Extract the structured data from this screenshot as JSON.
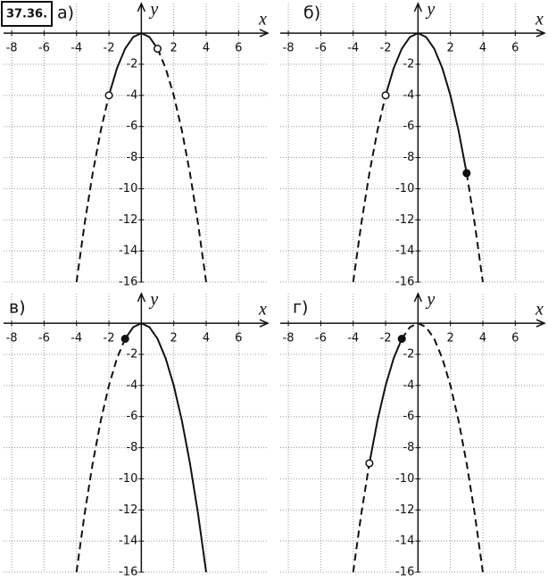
{
  "chart_data": [
    {
      "type": "line",
      "title": "37.36.",
      "label": "а)",
      "x_label": "x",
      "y_label": "y",
      "xlim": [
        -8.5,
        7.8
      ],
      "ylim": [
        -16,
        1.9
      ],
      "xticks": [
        -8,
        -6,
        -4,
        -2,
        2,
        4,
        6
      ],
      "yticks": [
        -2,
        -4,
        -6,
        -8,
        -10,
        -12,
        -14,
        -16
      ],
      "grid": true,
      "x": [
        -4,
        -3.5,
        -3,
        -2.5,
        -2,
        -1.5,
        -1,
        -0.5,
        0,
        0.5,
        1,
        1.5,
        2,
        2.5,
        3,
        3.5,
        4
      ],
      "series": [
        {
          "color": "#111111",
          "style": "dashed",
          "values": [
            -16,
            -12.25,
            -9,
            -6.25,
            -4,
            null,
            null,
            null,
            null,
            null,
            -1,
            -2.25,
            -4,
            -6.25,
            -9,
            -12.25,
            -16
          ]
        },
        {
          "color": "#111111",
          "style": "solid",
          "values": [
            null,
            null,
            null,
            null,
            -4,
            -2.25,
            -1,
            -0.25,
            0,
            -0.25,
            -1,
            null,
            null,
            null,
            null,
            null,
            null
          ]
        }
      ],
      "markers": {
        "x": [
          -2,
          1
        ],
        "values": [
          -4,
          -1
        ],
        "filled": [
          false,
          false
        ]
      }
    },
    {
      "type": "line",
      "label": "б)",
      "x_label": "x",
      "y_label": "y",
      "xlim": [
        -8.5,
        7.8
      ],
      "ylim": [
        -16,
        1.9
      ],
      "xticks": [
        -8,
        -6,
        -4,
        -2,
        2,
        4,
        6
      ],
      "yticks": [
        -2,
        -4,
        -6,
        -8,
        -10,
        -12,
        -14,
        -16
      ],
      "grid": true,
      "x": [
        -4,
        -3.5,
        -3,
        -2.5,
        -2,
        -1.5,
        -1,
        -0.5,
        0,
        0.5,
        1,
        1.5,
        2,
        2.5,
        3,
        3.5,
        4
      ],
      "series": [
        {
          "color": "#111111",
          "style": "dashed",
          "values": [
            -16,
            -12.25,
            -9,
            -6.25,
            -4,
            null,
            null,
            null,
            null,
            null,
            null,
            null,
            null,
            null,
            -9,
            -12.25,
            -16
          ]
        },
        {
          "color": "#111111",
          "style": "solid",
          "values": [
            null,
            null,
            null,
            null,
            -4,
            -2.25,
            -1,
            -0.25,
            0,
            -0.25,
            -1,
            -2.25,
            -4,
            -6.25,
            -9,
            null,
            null
          ]
        }
      ],
      "markers": {
        "x": [
          -2,
          3
        ],
        "values": [
          -4,
          -9
        ],
        "filled": [
          false,
          true
        ]
      }
    },
    {
      "type": "line",
      "label": "в)",
      "x_label": "x",
      "y_label": "y",
      "xlim": [
        -8.5,
        7.8
      ],
      "ylim": [
        -16,
        1.9
      ],
      "xticks": [
        -8,
        -6,
        -4,
        -2,
        2,
        4,
        6
      ],
      "yticks": [
        -2,
        -4,
        -6,
        -8,
        -10,
        -12,
        -14,
        -16
      ],
      "grid": true,
      "x": [
        -4,
        -3.5,
        -3,
        -2.5,
        -2,
        -1.5,
        -1,
        -0.5,
        0,
        0.5,
        1,
        1.5,
        2,
        2.5,
        3,
        3.5,
        4
      ],
      "series": [
        {
          "color": "#111111",
          "style": "dashed",
          "values": [
            -16,
            -12.25,
            -9,
            -6.25,
            -4,
            -2.25,
            -1,
            null,
            null,
            null,
            null,
            null,
            null,
            null,
            null,
            null,
            null
          ]
        },
        {
          "color": "#111111",
          "style": "solid",
          "values": [
            null,
            null,
            null,
            null,
            null,
            null,
            -1,
            -0.25,
            0,
            -0.25,
            -1,
            -2.25,
            -4,
            -6.25,
            -9,
            -12.25,
            -16
          ]
        }
      ],
      "markers": {
        "x": [
          -1
        ],
        "values": [
          -1
        ],
        "filled": [
          true
        ]
      }
    },
    {
      "type": "line",
      "label": "г)",
      "x_label": "x",
      "y_label": "y",
      "xlim": [
        -8.5,
        7.8
      ],
      "ylim": [
        -16,
        1.9
      ],
      "xticks": [
        -8,
        -6,
        -4,
        -2,
        2,
        4,
        6
      ],
      "yticks": [
        -2,
        -4,
        -6,
        -8,
        -10,
        -12,
        -14,
        -16
      ],
      "grid": true,
      "x": [
        -4,
        -3.5,
        -3,
        -2.5,
        -2,
        -1.5,
        -1,
        -0.5,
        0,
        0.5,
        1,
        1.5,
        2,
        2.5,
        3,
        3.5,
        4
      ],
      "series": [
        {
          "color": "#111111",
          "style": "dashed",
          "values": [
            -16,
            -12.25,
            -9,
            null,
            null,
            null,
            -1,
            -0.25,
            0,
            -0.25,
            -1,
            -2.25,
            -4,
            -6.25,
            -9,
            -12.25,
            -16
          ]
        },
        {
          "color": "#111111",
          "style": "solid",
          "values": [
            null,
            null,
            -9,
            -6.25,
            -4,
            -2.25,
            -1,
            null,
            null,
            null,
            null,
            null,
            null,
            null,
            null,
            null,
            null
          ]
        }
      ],
      "markers": {
        "x": [
          -3,
          -1
        ],
        "values": [
          -9,
          -1
        ],
        "filled": [
          false,
          true
        ]
      }
    }
  ]
}
